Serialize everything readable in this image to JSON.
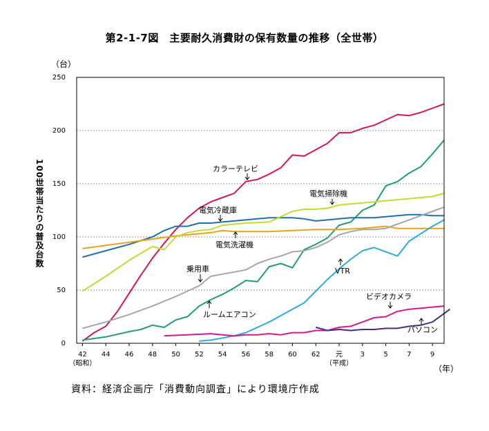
{
  "title": "第2-1-7図　主要耐久消費財の保有数量の推移（全世帯）",
  "unit_label": "（台）",
  "ylabel": "100世帯当たりの普及台数",
  "year_unit": "（年）",
  "source": "資料：経済企画庁「消費動向調査」により環境庁作成",
  "chart_data": {
    "type": "line",
    "title": "第2-1-7図　主要耐久消費財の保有数量の推移（全世帯）",
    "ylabel": "100世帯当たりの普及台数",
    "ylim": [
      0,
      250
    ],
    "yticks": [
      0,
      50,
      100,
      150,
      200,
      250
    ],
    "xlim": [
      1966.5,
      1998
    ],
    "xticks": [
      {
        "year": 1967,
        "label": "42"
      },
      {
        "year": 1969,
        "label": "44"
      },
      {
        "year": 1971,
        "label": "46"
      },
      {
        "year": 1973,
        "label": "48"
      },
      {
        "year": 1975,
        "label": "50"
      },
      {
        "year": 1977,
        "label": "52"
      },
      {
        "year": 1979,
        "label": "54"
      },
      {
        "year": 1981,
        "label": "56"
      },
      {
        "year": 1983,
        "label": "58"
      },
      {
        "year": 1985,
        "label": "60"
      },
      {
        "year": 1987,
        "label": "62"
      },
      {
        "year": 1989,
        "label": "元"
      },
      {
        "year": 1991,
        "label": "3"
      },
      {
        "year": 1993,
        "label": "5"
      },
      {
        "year": 1995,
        "label": "7"
      },
      {
        "year": 1997,
        "label": "9"
      }
    ],
    "era_labels": {
      "showa": "（昭和）",
      "heisei": "（平成）"
    },
    "grid": "horizontal dotted",
    "series": [
      {
        "name": "カラーテレビ",
        "color": "#d6174a",
        "points": [
          [
            1967,
            2
          ],
          [
            1968,
            10
          ],
          [
            1969,
            16
          ],
          [
            1970,
            30
          ],
          [
            1971,
            47
          ],
          [
            1972,
            64
          ],
          [
            1973,
            80
          ],
          [
            1974,
            94
          ],
          [
            1975,
            107
          ],
          [
            1976,
            118
          ],
          [
            1977,
            127
          ],
          [
            1978,
            133
          ],
          [
            1979,
            137
          ],
          [
            1980,
            141
          ],
          [
            1981,
            152
          ],
          [
            1982,
            154
          ],
          [
            1983,
            159
          ],
          [
            1984,
            165
          ],
          [
            1985,
            177
          ],
          [
            1986,
            176
          ],
          [
            1987,
            182
          ],
          [
            1988,
            188
          ],
          [
            1989,
            198
          ],
          [
            1990,
            198
          ],
          [
            1991,
            202
          ],
          [
            1992,
            205
          ],
          [
            1993,
            210
          ],
          [
            1994,
            215
          ],
          [
            1995,
            214
          ],
          [
            1996,
            217
          ],
          [
            1997,
            221
          ],
          [
            1998,
            225
          ]
        ]
      },
      {
        "name": "ルームエアコン",
        "color": "#1f9e6e",
        "points": [
          [
            1967,
            3
          ],
          [
            1969,
            6
          ],
          [
            1971,
            11
          ],
          [
            1972,
            13
          ],
          [
            1973,
            17
          ],
          [
            1974,
            15
          ],
          [
            1975,
            22
          ],
          [
            1976,
            25
          ],
          [
            1977,
            35
          ],
          [
            1978,
            41
          ],
          [
            1979,
            46
          ],
          [
            1980,
            52
          ],
          [
            1981,
            59
          ],
          [
            1982,
            58
          ],
          [
            1983,
            72
          ],
          [
            1984,
            75
          ],
          [
            1985,
            71
          ],
          [
            1986,
            88
          ],
          [
            1987,
            93
          ],
          [
            1988,
            99
          ],
          [
            1989,
            111
          ],
          [
            1990,
            114
          ],
          [
            1991,
            125
          ],
          [
            1992,
            130
          ],
          [
            1993,
            148
          ],
          [
            1994,
            152
          ],
          [
            1995,
            160
          ],
          [
            1996,
            166
          ],
          [
            1997,
            178
          ],
          [
            1998,
            191
          ]
        ]
      },
      {
        "name": "電気冷蔵庫",
        "color": "#1f6fb0",
        "points": [
          [
            1967,
            81
          ],
          [
            1969,
            87
          ],
          [
            1971,
            93
          ],
          [
            1973,
            100
          ],
          [
            1974,
            106
          ],
          [
            1975,
            110
          ],
          [
            1976,
            110
          ],
          [
            1977,
            113
          ],
          [
            1978,
            113
          ],
          [
            1979,
            114
          ],
          [
            1980,
            115
          ],
          [
            1981,
            116
          ],
          [
            1982,
            117
          ],
          [
            1983,
            118
          ],
          [
            1984,
            118
          ],
          [
            1985,
            118
          ],
          [
            1986,
            117
          ],
          [
            1987,
            115
          ],
          [
            1988,
            116
          ],
          [
            1989,
            117
          ],
          [
            1990,
            118
          ],
          [
            1991,
            118
          ],
          [
            1992,
            118
          ],
          [
            1993,
            119
          ],
          [
            1994,
            120
          ],
          [
            1995,
            121
          ],
          [
            1996,
            121
          ],
          [
            1997,
            120
          ],
          [
            1998,
            120
          ]
        ]
      },
      {
        "name": "電気洗濯機",
        "color": "#e8a317",
        "points": [
          [
            1967,
            89
          ],
          [
            1969,
            92
          ],
          [
            1971,
            95
          ],
          [
            1973,
            98
          ],
          [
            1975,
            101
          ],
          [
            1977,
            103
          ],
          [
            1978,
            104
          ],
          [
            1979,
            106
          ],
          [
            1980,
            105
          ],
          [
            1981,
            105
          ],
          [
            1983,
            105
          ],
          [
            1985,
            106
          ],
          [
            1987,
            107
          ],
          [
            1989,
            107
          ],
          [
            1991,
            108
          ],
          [
            1993,
            110
          ],
          [
            1994,
            108
          ],
          [
            1996,
            108
          ],
          [
            1998,
            108
          ]
        ]
      },
      {
        "name": "電気掃除機",
        "color": "#c6d92e",
        "points": [
          [
            1967,
            49
          ],
          [
            1969,
            63
          ],
          [
            1971,
            78
          ],
          [
            1973,
            91
          ],
          [
            1974,
            88
          ],
          [
            1975,
            100
          ],
          [
            1976,
            104
          ],
          [
            1977,
            106
          ],
          [
            1978,
            107
          ],
          [
            1979,
            111
          ],
          [
            1981,
            113
          ],
          [
            1983,
            114
          ],
          [
            1984,
            119
          ],
          [
            1985,
            124
          ],
          [
            1986,
            126
          ],
          [
            1987,
            126
          ],
          [
            1988,
            127
          ],
          [
            1989,
            130
          ],
          [
            1990,
            131
          ],
          [
            1991,
            132
          ],
          [
            1992,
            133
          ],
          [
            1993,
            134
          ],
          [
            1995,
            136
          ],
          [
            1996,
            137
          ],
          [
            1997,
            138
          ],
          [
            1998,
            141
          ]
        ]
      },
      {
        "name": "乗用車",
        "color": "#a6a6a6",
        "points": [
          [
            1967,
            14
          ],
          [
            1969,
            20
          ],
          [
            1971,
            27
          ],
          [
            1973,
            35
          ],
          [
            1975,
            44
          ],
          [
            1976,
            49
          ],
          [
            1977,
            54
          ],
          [
            1978,
            63
          ],
          [
            1979,
            65
          ],
          [
            1980,
            67
          ],
          [
            1981,
            69
          ],
          [
            1982,
            75
          ],
          [
            1983,
            79
          ],
          [
            1984,
            82
          ],
          [
            1985,
            86
          ],
          [
            1986,
            87
          ],
          [
            1987,
            90
          ],
          [
            1988,
            95
          ],
          [
            1989,
            102
          ],
          [
            1990,
            105
          ],
          [
            1991,
            107
          ],
          [
            1992,
            107
          ],
          [
            1993,
            108
          ],
          [
            1994,
            112
          ],
          [
            1995,
            116
          ],
          [
            1996,
            120
          ],
          [
            1997,
            124
          ],
          [
            1998,
            128
          ]
        ]
      },
      {
        "name": "VTR",
        "color": "#29abe2",
        "points": [
          [
            1977,
            2
          ],
          [
            1978,
            3
          ],
          [
            1979,
            5
          ],
          [
            1980,
            7
          ],
          [
            1981,
            10
          ],
          [
            1982,
            15
          ],
          [
            1983,
            20
          ],
          [
            1984,
            26
          ],
          [
            1985,
            32
          ],
          [
            1986,
            38
          ],
          [
            1987,
            49
          ],
          [
            1988,
            60
          ],
          [
            1989,
            70
          ],
          [
            1990,
            79
          ],
          [
            1991,
            87
          ],
          [
            1992,
            90
          ],
          [
            1993,
            86
          ],
          [
            1994,
            82
          ],
          [
            1995,
            96
          ],
          [
            1996,
            103
          ],
          [
            1997,
            110
          ],
          [
            1998,
            116
          ]
        ]
      },
      {
        "name": "ビデオカメラ",
        "color": "#d4178a",
        "points": [
          [
            1974,
            7
          ],
          [
            1976,
            8
          ],
          [
            1978,
            9
          ],
          [
            1979,
            8
          ],
          [
            1980,
            7
          ],
          [
            1981,
            8
          ],
          [
            1982,
            8
          ],
          [
            1983,
            9
          ],
          [
            1984,
            8
          ],
          [
            1985,
            10
          ],
          [
            1986,
            10
          ],
          [
            1987,
            12
          ],
          [
            1988,
            12
          ],
          [
            1989,
            15
          ],
          [
            1990,
            16
          ],
          [
            1991,
            20
          ],
          [
            1992,
            24
          ],
          [
            1993,
            25
          ],
          [
            1994,
            30
          ],
          [
            1995,
            32
          ],
          [
            1996,
            33
          ],
          [
            1997,
            34
          ],
          [
            1998,
            35
          ]
        ]
      },
      {
        "name": "パソコン",
        "color": "#4b2a85",
        "points": [
          [
            1987,
            15
          ],
          [
            1988,
            12
          ],
          [
            1989,
            13
          ],
          [
            1990,
            12
          ],
          [
            1991,
            13
          ],
          [
            1992,
            13
          ],
          [
            1993,
            14
          ],
          [
            1994,
            14
          ],
          [
            1995,
            16
          ],
          [
            1996,
            17
          ],
          [
            1997,
            20
          ],
          [
            1998,
            28
          ],
          [
            1998.5,
            32
          ]
        ]
      }
    ]
  }
}
